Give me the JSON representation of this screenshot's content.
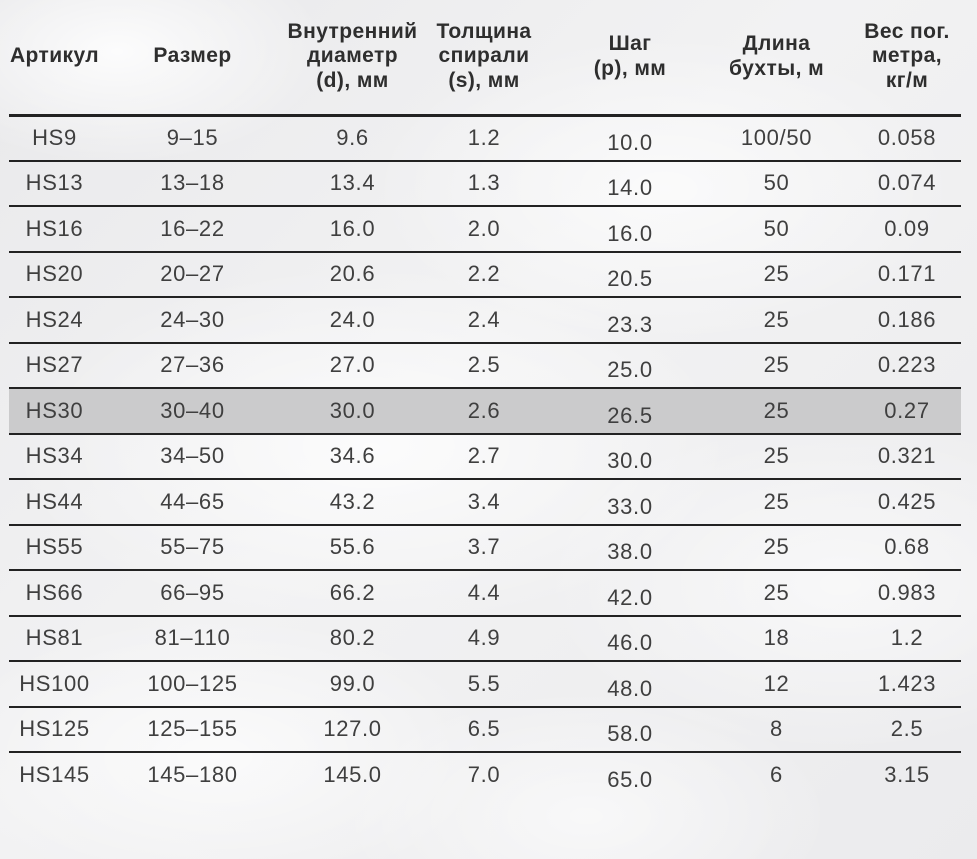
{
  "table": {
    "text_color": "#3f3f3f",
    "line_color": "#222222",
    "highlight_color": "#cbcbcc",
    "columns": [
      {
        "key": "article",
        "label": "Артикул"
      },
      {
        "key": "size",
        "label": "Размер"
      },
      {
        "key": "inner_diameter",
        "label": "Внутренний\nдиаметр\n(d), мм"
      },
      {
        "key": "spiral_thickness",
        "label": "Толщина\nспирали\n(s), мм"
      },
      {
        "key": "pitch",
        "label": "Шаг\n(p), мм"
      },
      {
        "key": "coil_length",
        "label": "Длина\nбухты, м"
      },
      {
        "key": "weight",
        "label": "Вес пог.\nметра,\nкг/м"
      }
    ],
    "rows": [
      {
        "cells": [
          "HS9",
          "9–15",
          "9.6",
          "1.2",
          "10.0",
          "100/50",
          "0.058"
        ]
      },
      {
        "cells": [
          "HS13",
          "13–18",
          "13.4",
          "1.3",
          "14.0",
          "50",
          "0.074"
        ]
      },
      {
        "cells": [
          "HS16",
          "16–22",
          "16.0",
          "2.0",
          "16.0",
          "50",
          "0.09"
        ]
      },
      {
        "cells": [
          "HS20",
          "20–27",
          "20.6",
          "2.2",
          "20.5",
          "25",
          "0.171"
        ]
      },
      {
        "cells": [
          "HS24",
          "24–30",
          "24.0",
          "2.4",
          "23.3",
          "25",
          "0.186"
        ]
      },
      {
        "cells": [
          "HS27",
          "27–36",
          "27.0",
          "2.5",
          "25.0",
          "25",
          "0.223"
        ]
      },
      {
        "cells": [
          "HS30",
          "30–40",
          "30.0",
          "2.6",
          "26.5",
          "25",
          "0.27"
        ],
        "highlighted": true
      },
      {
        "cells": [
          "HS34",
          "34–50",
          "34.6",
          "2.7",
          "30.0",
          "25",
          "0.321"
        ]
      },
      {
        "cells": [
          "HS44",
          "44–65",
          "43.2",
          "3.4",
          "33.0",
          "25",
          "0.425"
        ]
      },
      {
        "cells": [
          "HS55",
          "55–75",
          "55.6",
          "3.7",
          "38.0",
          "25",
          "0.68"
        ]
      },
      {
        "cells": [
          "HS66",
          "66–95",
          "66.2",
          "4.4",
          "42.0",
          "25",
          "0.983"
        ]
      },
      {
        "cells": [
          "HS81",
          "81–110",
          "80.2",
          "4.9",
          "46.0",
          "18",
          "1.2"
        ]
      },
      {
        "cells": [
          "HS100",
          "100–125",
          "99.0",
          "5.5",
          "48.0",
          "12",
          "1.423"
        ]
      },
      {
        "cells": [
          "HS125",
          "125–155",
          "127.0",
          "6.5",
          "58.0",
          "8",
          "2.5"
        ]
      },
      {
        "cells": [
          "HS145",
          "145–180",
          "145.0",
          "7.0",
          "65.0",
          "6",
          "3.15"
        ]
      }
    ]
  },
  "chart_data": {
    "type": "table",
    "title": "",
    "columns": [
      "Артикул",
      "Размер",
      "Внутренний диаметр (d), мм",
      "Толщина спирали (s), мм",
      "Шаг (p), мм",
      "Длина бухты, м",
      "Вес пог. метра, кг/м"
    ],
    "rows": [
      [
        "HS9",
        "9–15",
        9.6,
        1.2,
        10.0,
        "100/50",
        0.058
      ],
      [
        "HS13",
        "13–18",
        13.4,
        1.3,
        14.0,
        "50",
        0.074
      ],
      [
        "HS16",
        "16–22",
        16.0,
        2.0,
        16.0,
        "50",
        0.09
      ],
      [
        "HS20",
        "20–27",
        20.6,
        2.2,
        20.5,
        "25",
        0.171
      ],
      [
        "HS24",
        "24–30",
        24.0,
        2.4,
        23.3,
        "25",
        0.186
      ],
      [
        "HS27",
        "27–36",
        27.0,
        2.5,
        25.0,
        "25",
        0.223
      ],
      [
        "HS30",
        "30–40",
        30.0,
        2.6,
        26.5,
        "25",
        0.27
      ],
      [
        "HS34",
        "34–50",
        34.6,
        2.7,
        30.0,
        "25",
        0.321
      ],
      [
        "HS44",
        "44–65",
        43.2,
        3.4,
        33.0,
        "25",
        0.425
      ],
      [
        "HS55",
        "55–75",
        55.6,
        3.7,
        38.0,
        "25",
        0.68
      ],
      [
        "HS66",
        "66–95",
        66.2,
        4.4,
        42.0,
        "25",
        0.983
      ],
      [
        "HS81",
        "81–110",
        80.2,
        4.9,
        46.0,
        "18",
        1.2
      ],
      [
        "HS100",
        "100–125",
        99.0,
        5.5,
        48.0,
        "12",
        1.423
      ],
      [
        "HS125",
        "125–155",
        127.0,
        6.5,
        58.0,
        "8",
        2.5
      ],
      [
        "HS145",
        "145–180",
        145.0,
        7.0,
        65.0,
        "6",
        3.15
      ]
    ],
    "highlighted_row": "HS30",
    "layout_hints": {
      "grid": "horizontal-rules-only",
      "header_rule_weight": 3,
      "row_rule_weight": 2,
      "last_row_bottom_rule": false
    }
  }
}
